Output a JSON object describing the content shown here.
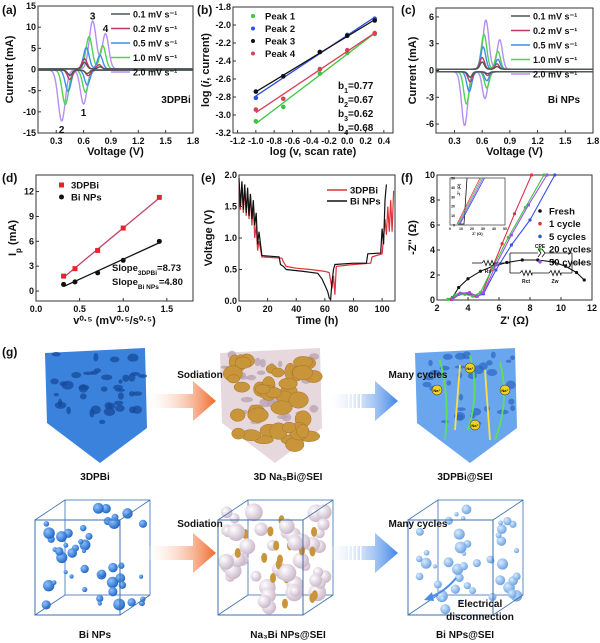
{
  "panel_labels": {
    "a": "(a)",
    "b": "(b)",
    "c": "(c)",
    "d": "(d)",
    "e": "(e)",
    "f": "(f)",
    "g": "(g)"
  },
  "chart_data": [
    {
      "id": "a",
      "type": "line",
      "xlabel": "Voltage (V)",
      "ylabel": "Current (mA)",
      "xlim": [
        0.1,
        1.8
      ],
      "ylim": [
        -15,
        15
      ],
      "xticks": [
        "0.3",
        "0.6",
        "0.9",
        "1.2",
        "1.5",
        "1.8"
      ],
      "yticks": [
        "-15",
        "-10",
        "-5",
        "0",
        "5",
        "10",
        "15"
      ],
      "sample_label": "3DPBi",
      "peak_labels": [
        {
          "text": "1",
          "V": 0.6,
          "I": -10
        },
        {
          "text": "2",
          "V": 0.36,
          "I": -14
        },
        {
          "text": "3",
          "V": 0.7,
          "I": 12.8
        },
        {
          "text": "4",
          "V": 0.84,
          "I": 9.8
        }
      ],
      "series": [
        {
          "name": "0.1 mV s⁻¹",
          "color": "#4a5656",
          "peaks": [
            [
              0.61,
              1.5
            ],
            [
              0.78,
              0.5
            ],
            [
              0.64,
              -0.8
            ],
            [
              0.45,
              -1.2
            ]
          ]
        },
        {
          "name": "0.2 mV s⁻¹",
          "color": "#c23a62",
          "peaks": [
            [
              0.61,
              2.4
            ],
            [
              0.77,
              1.0
            ],
            [
              0.65,
              -1.3
            ],
            [
              0.45,
              -2.2
            ]
          ]
        },
        {
          "name": "0.5 mV s⁻¹",
          "color": "#3d8fe8",
          "peaks": [
            [
              0.63,
              5.0
            ],
            [
              0.78,
              3.2
            ],
            [
              0.64,
              -3.5
            ],
            [
              0.43,
              -5.0
            ]
          ]
        },
        {
          "name": "1.0 mV s⁻¹",
          "color": "#4fd34f",
          "peaks": [
            [
              0.66,
              7.6
            ],
            [
              0.81,
              5.5
            ],
            [
              0.62,
              -5.2
            ],
            [
              0.4,
              -8.1
            ]
          ]
        },
        {
          "name": "2.0 mV s⁻¹",
          "color": "#b58ef2",
          "peaks": [
            [
              0.7,
              11.3
            ],
            [
              0.84,
              8.3
            ],
            [
              0.6,
              -8.0
            ],
            [
              0.36,
              -12.0
            ]
          ]
        }
      ]
    },
    {
      "id": "b",
      "type": "scatter",
      "xlabel": "log (v, scan rate)",
      "ylabel_parts": [
        "log (",
        "i",
        ", current)"
      ],
      "xlim": [
        -1.25,
        0.5
      ],
      "ylim": [
        -3.2,
        -1.8
      ],
      "xticks": [
        "-1.2",
        "-1.0",
        "-0.8",
        "-0.6",
        "-0.4",
        "-0.2",
        "0.0",
        "0.2",
        "0.4"
      ],
      "yticks": [
        "-3.2",
        "-3.0",
        "-2.8",
        "-2.6",
        "-2.4",
        "-2.2",
        "-2.0",
        "-1.8"
      ],
      "x": [
        -1.0,
        -0.7,
        -0.3,
        0.0,
        0.3
      ],
      "series": [
        {
          "name": "Peak 1",
          "color": "#3cc43c",
          "values": [
            -3.07,
            -2.91,
            -2.54,
            -2.31,
            -2.1
          ]
        },
        {
          "name": "Peak 2",
          "color": "#2f4fe8",
          "values": [
            -2.81,
            -2.57,
            -2.3,
            -2.11,
            -1.93
          ]
        },
        {
          "name": "Peak 3",
          "color": "#111111",
          "values": [
            -2.74,
            -2.57,
            -2.3,
            -2.12,
            -1.95
          ]
        },
        {
          "name": "Peak 4",
          "color": "#d8405a",
          "values": [
            -2.94,
            -2.82,
            -2.49,
            -2.28,
            -2.09
          ]
        }
      ],
      "annotations": [
        {
          "main": "b",
          "sub": "1",
          "value": "=0.77"
        },
        {
          "main": "b",
          "sub": "2",
          "value": "=0.67"
        },
        {
          "main": "b",
          "sub": "3",
          "value": "=0.62"
        },
        {
          "main": "b",
          "sub": "4",
          "value": "=0.68"
        }
      ]
    },
    {
      "id": "c",
      "type": "line",
      "xlabel": "Voltage (V)",
      "ylabel": "Current (mA)",
      "xlim": [
        0.1,
        1.8
      ],
      "ylim": [
        -7,
        7
      ],
      "xticks": [
        "0.3",
        "0.6",
        "0.9",
        "1.2",
        "1.5",
        "1.8"
      ],
      "yticks": [
        "-6",
        "-3",
        "0",
        "3",
        "6"
      ],
      "sample_label": "Bi NPs",
      "series": [
        {
          "name": "0.1 mV s⁻¹",
          "color": "#4a5656",
          "peaks": [
            [
              0.6,
              0.8
            ],
            [
              0.76,
              0.3
            ],
            [
              0.66,
              -0.2
            ],
            [
              0.47,
              -0.6
            ]
          ]
        },
        {
          "name": "0.2 mV s⁻¹",
          "color": "#c23a62",
          "peaks": [
            [
              0.6,
              1.3
            ],
            [
              0.76,
              0.6
            ],
            [
              0.66,
              -0.4
            ],
            [
              0.47,
              -1.1
            ]
          ]
        },
        {
          "name": "0.5 mV s⁻¹",
          "color": "#3d8fe8",
          "peaks": [
            [
              0.61,
              2.5
            ],
            [
              0.77,
              1.1
            ],
            [
              0.65,
              -1.0
            ],
            [
              0.46,
              -2.2
            ]
          ]
        },
        {
          "name": "1.0 mV s⁻¹",
          "color": "#4fd34f",
          "peaks": [
            [
              0.62,
              3.9
            ],
            [
              0.77,
              2.0
            ],
            [
              0.65,
              -1.8
            ],
            [
              0.43,
              -3.6
            ]
          ]
        },
        {
          "name": "2.0 mV s⁻¹",
          "color": "#b58ef2",
          "peaks": [
            [
              0.64,
              5.5
            ],
            [
              0.79,
              3.3
            ],
            [
              0.63,
              -3.0
            ],
            [
              0.41,
              -6.0
            ]
          ]
        }
      ]
    },
    {
      "id": "d",
      "type": "scatter",
      "xlabel": "v⁰·⁵ (mV⁰·⁵/s⁰·⁵)",
      "ylabel_parts": [
        "I",
        "p",
        " (mA)"
      ],
      "xlim": [
        0.0,
        1.8
      ],
      "ylim": [
        -1.2,
        14
      ],
      "xticks": [
        "0.0",
        "0.5",
        "1.0",
        "1.5"
      ],
      "yticks": [
        "0",
        "3",
        "6",
        "9",
        "12"
      ],
      "x": [
        0.316,
        0.447,
        0.707,
        1.0,
        1.414
      ],
      "series": [
        {
          "name": "3DPBi",
          "color": "#e8232e",
          "line": "#c0406a",
          "marker": "square",
          "values": [
            1.8,
            2.7,
            4.9,
            7.6,
            11.3
          ]
        },
        {
          "name": "Bi NPs",
          "color": "#111111",
          "line": "#111111",
          "marker": "circle",
          "values": [
            0.8,
            1.1,
            2.2,
            3.7,
            6.0
          ]
        }
      ],
      "annotations": [
        {
          "main": "Slope",
          "sub": "3DPBi",
          "value": "=8.73"
        },
        {
          "main": "Slope",
          "sub": "Bi NPs",
          "value": "=4.80"
        }
      ]
    },
    {
      "id": "e",
      "type": "line",
      "xlabel": "Time (h)",
      "ylabel": "Voltage (V)",
      "xlim": [
        0,
        109
      ],
      "ylim": [
        0,
        2.0
      ],
      "xticks": [
        "0",
        "20",
        "40",
        "60",
        "80",
        "100"
      ],
      "yticks": [
        "0.0",
        "0.5",
        "1.0",
        "1.5",
        "2.0"
      ],
      "series": [
        {
          "name": "3DPBi",
          "color": "#e0303a",
          "points": [
            [
              0,
              1.9
            ],
            [
              1,
              1.45
            ],
            [
              2,
              1.85
            ],
            [
              3,
              1.4
            ],
            [
              4,
              1.8
            ],
            [
              5,
              1.35
            ],
            [
              6,
              1.75
            ],
            [
              7,
              1.3
            ],
            [
              8,
              1.7
            ],
            [
              9,
              1.2
            ],
            [
              10,
              1.55
            ],
            [
              11,
              1.0
            ],
            [
              12,
              1.2
            ],
            [
              13,
              0.8
            ],
            [
              14,
              0.95
            ],
            [
              16,
              0.7
            ],
            [
              30,
              0.68
            ],
            [
              31,
              0.62
            ],
            [
              33,
              0.55
            ],
            [
              40,
              0.52
            ],
            [
              50,
              0.5
            ],
            [
              60,
              0.47
            ],
            [
              63,
              0.45
            ],
            [
              65,
              0.2
            ],
            [
              66,
              0.4
            ],
            [
              67,
              0.1
            ],
            [
              68,
              0.55
            ],
            [
              80,
              0.58
            ],
            [
              92,
              0.6
            ],
            [
              93,
              0.7
            ],
            [
              100,
              0.75
            ],
            [
              101,
              1.0
            ],
            [
              102,
              1.3
            ],
            [
              103,
              1.05
            ],
            [
              104,
              1.5
            ],
            [
              105,
              1.1
            ],
            [
              106,
              1.6
            ],
            [
              107,
              1.1
            ],
            [
              108,
              1.75
            ]
          ]
        },
        {
          "name": "Bi NPs",
          "color": "#111111",
          "points": [
            [
              0,
              1.95
            ],
            [
              1,
              1.5
            ],
            [
              2,
              1.9
            ],
            [
              3,
              1.45
            ],
            [
              4,
              1.85
            ],
            [
              5,
              1.4
            ],
            [
              6,
              1.8
            ],
            [
              7,
              1.35
            ],
            [
              8,
              1.7
            ],
            [
              9,
              1.3
            ],
            [
              10,
              1.6
            ],
            [
              11,
              1.2
            ],
            [
              12,
              1.4
            ],
            [
              13,
              0.9
            ],
            [
              14,
              1.1
            ],
            [
              16,
              0.72
            ],
            [
              28,
              0.7
            ],
            [
              29,
              0.58
            ],
            [
              31,
              0.55
            ],
            [
              33,
              0.5
            ],
            [
              45,
              0.47
            ],
            [
              55,
              0.44
            ],
            [
              58,
              0.35
            ],
            [
              60,
              0.25
            ],
            [
              62,
              0.15
            ],
            [
              63,
              0.05
            ],
            [
              64,
              0.02
            ],
            [
              65,
              0.3
            ],
            [
              66,
              0.5
            ],
            [
              67,
              0.58
            ],
            [
              80,
              0.6
            ],
            [
              89,
              0.6
            ],
            [
              90,
              0.75
            ],
            [
              99,
              0.76
            ],
            [
              100,
              1.15
            ],
            [
              101,
              0.9
            ],
            [
              102,
              1.6
            ],
            [
              103,
              1.85
            ]
          ]
        }
      ]
    },
    {
      "id": "f",
      "type": "scatter",
      "xlabel": "Z' (Ω)",
      "ylabel": "-Z'' (Ω)",
      "xlim": [
        2,
        12
      ],
      "ylim": [
        0,
        10
      ],
      "xticks": [
        "2",
        "4",
        "6",
        "8",
        "10",
        "12"
      ],
      "yticks": [
        "0",
        "2",
        "4",
        "6",
        "8",
        "10"
      ],
      "series": [
        {
          "name": "Fresh",
          "color": "#111111",
          "points": [
            [
              3.0,
              0.2
            ],
            [
              3.4,
              1.0
            ],
            [
              4.0,
              1.7
            ],
            [
              4.8,
              2.3
            ],
            [
              5.6,
              2.7
            ],
            [
              6.5,
              3.0
            ],
            [
              7.5,
              3.2
            ],
            [
              8.5,
              3.2
            ],
            [
              9.5,
              3.05
            ],
            [
              10.3,
              2.7
            ],
            [
              11.0,
              2.2
            ],
            [
              11.5,
              1.6
            ]
          ]
        },
        {
          "name": "1 cycle",
          "color": "#e0304a",
          "points": [
            [
              2.9,
              0.05
            ],
            [
              3.4,
              0.45
            ],
            [
              4.0,
              0.5
            ],
            [
              4.5,
              0.3
            ],
            [
              4.9,
              0.5
            ],
            [
              5.5,
              2.4
            ],
            [
              6.2,
              4.5
            ],
            [
              7.0,
              6.9
            ],
            [
              8.1,
              10
            ]
          ]
        },
        {
          "name": "5 cycles",
          "color": "#3a50e8",
          "points": [
            [
              3.0,
              0.05
            ],
            [
              3.5,
              0.5
            ],
            [
              4.1,
              0.55
            ],
            [
              4.6,
              0.3
            ],
            [
              5.0,
              0.5
            ],
            [
              5.8,
              2.4
            ],
            [
              6.8,
              4.4
            ],
            [
              8.0,
              6.4
            ],
            [
              9.6,
              10
            ]
          ]
        },
        {
          "name": "20 cycles",
          "color": "#3ec43e",
          "points": [
            [
              2.7,
              0.05
            ],
            [
              3.2,
              0.4
            ],
            [
              3.8,
              0.45
            ],
            [
              4.3,
              0.3
            ],
            [
              4.8,
              0.6
            ],
            [
              5.6,
              2.6
            ],
            [
              6.6,
              5.0
            ],
            [
              7.7,
              7.4
            ],
            [
              8.9,
              10
            ]
          ]
        },
        {
          "name": "50 cycles",
          "color": "#a050f0",
          "points": [
            [
              3.0,
              0.05
            ],
            [
              3.5,
              0.55
            ],
            [
              4.1,
              0.6
            ],
            [
              4.6,
              0.3
            ],
            [
              5.0,
              0.6
            ],
            [
              5.8,
              2.8
            ],
            [
              6.8,
              5.2
            ],
            [
              7.9,
              7.6
            ],
            [
              9.1,
              10
            ]
          ]
        }
      ],
      "inset": {
        "xlabel": "Z' (Ω)",
        "ylabel": "-Z'' (Ω)",
        "xticks": [
          "0",
          "10",
          "20",
          "30",
          "40",
          "50"
        ],
        "yticks": [
          "0",
          "10",
          "20",
          "30",
          "40",
          "50"
        ]
      },
      "circuit": {
        "rs": "Rs",
        "cpe": "CPE",
        "rct": "Rct",
        "zw": "Zw"
      }
    }
  ],
  "schematic": {
    "top_row": {
      "labels": [
        "3DPBi",
        "3D Na₃Bi@SEI",
        "3DPBi@SEI"
      ],
      "arrow1": "Sodiation",
      "arrow2": "Many cycles",
      "ion_label": "Na⁺"
    },
    "bottom_row": {
      "labels": [
        "Bi NPs",
        "Na₃Bi NPs@SEI",
        "Bi NPs@SEI"
      ],
      "arrow1": "Sodiation",
      "arrow2": "Many cycles",
      "note_line1": "Electrical",
      "note_line2": "disconnection"
    },
    "colors": {
      "bi": "#3a82dc",
      "na3bi": "#c8953a",
      "sei": "#e8dce8",
      "arrow_sodiation": "#f07a3a",
      "arrow_cycles": "#4a8ee8"
    }
  }
}
